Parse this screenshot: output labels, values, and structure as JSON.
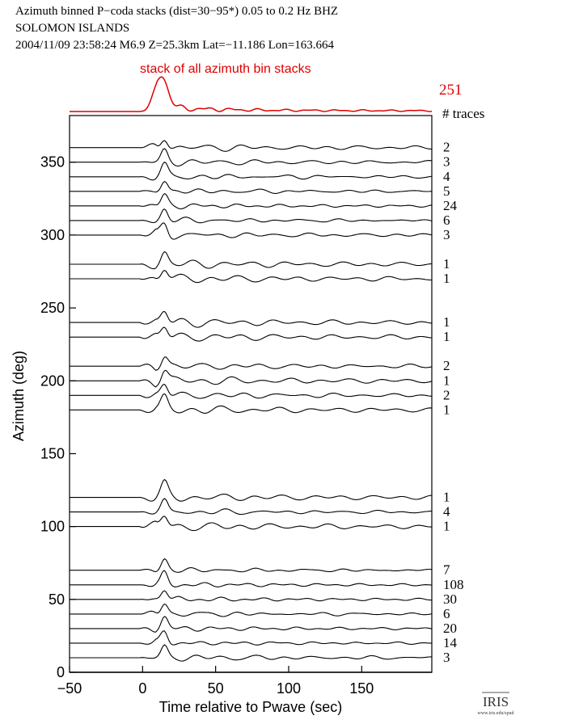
{
  "header": {
    "line1": "Azimuth binned P−coda stacks (dist=30−95*)  0.05 to 0.2 Hz  BHZ",
    "line2": "SOLOMON ISLANDS",
    "line3": "2004/11/09  23:58:24  M6.9  Z=25.3km Lat=−11.186 Lon=163.664"
  },
  "logo": {
    "name": "IRIS",
    "url": "www.iris.edu/spud"
  },
  "chart_data": {
    "type": "line",
    "xlabel": "Time relative to Pwave (sec)",
    "ylabel": "Azimuth (deg)",
    "xlim": [
      -50,
      198
    ],
    "ylim": [
      0,
      382
    ],
    "xticks": [
      -50,
      0,
      50,
      100,
      150
    ],
    "yticks": [
      0,
      50,
      100,
      150,
      200,
      250,
      300,
      350
    ],
    "grid": false,
    "summary": {
      "label": "stack of all azimuth bin stacks",
      "traces": "251",
      "traces_header": "# traces",
      "color": "#e00000"
    },
    "series": [
      {
        "azimuth": 360,
        "traces": "2"
      },
      {
        "azimuth": 350,
        "traces": "3"
      },
      {
        "azimuth": 340,
        "traces": "4"
      },
      {
        "azimuth": 330,
        "traces": "5"
      },
      {
        "azimuth": 320,
        "traces": "24"
      },
      {
        "azimuth": 310,
        "traces": "6"
      },
      {
        "azimuth": 300,
        "traces": "3"
      },
      {
        "azimuth": 280,
        "traces": "1"
      },
      {
        "azimuth": 270,
        "traces": "1"
      },
      {
        "azimuth": 240,
        "traces": "1"
      },
      {
        "azimuth": 230,
        "traces": "1"
      },
      {
        "azimuth": 210,
        "traces": "2"
      },
      {
        "azimuth": 200,
        "traces": "1"
      },
      {
        "azimuth": 190,
        "traces": "2"
      },
      {
        "azimuth": 180,
        "traces": "1"
      },
      {
        "azimuth": 120,
        "traces": "1"
      },
      {
        "azimuth": 110,
        "traces": "4"
      },
      {
        "azimuth": 100,
        "traces": "1"
      },
      {
        "azimuth": 70,
        "traces": "7"
      },
      {
        "azimuth": 60,
        "traces": "108"
      },
      {
        "azimuth": 50,
        "traces": "30"
      },
      {
        "azimuth": 40,
        "traces": "6"
      },
      {
        "azimuth": 30,
        "traces": "20"
      },
      {
        "azimuth": 20,
        "traces": "14"
      },
      {
        "azimuth": 10,
        "traces": "3"
      }
    ]
  }
}
